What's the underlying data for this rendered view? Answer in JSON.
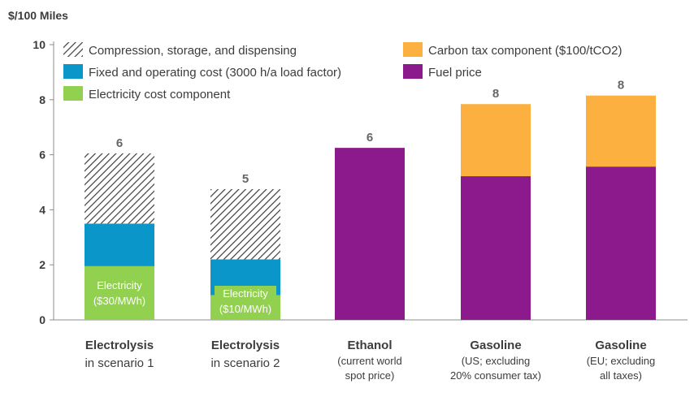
{
  "chart_data": {
    "type": "bar",
    "stacked": true,
    "ylabel": "$/100 Miles",
    "ylim": [
      0,
      10
    ],
    "yticks": [
      0,
      2,
      4,
      6,
      8,
      10
    ],
    "grid": false,
    "legend_position": "top",
    "categories": [
      {
        "title": "Electrolysis",
        "lines": [
          "in scenario 1"
        ]
      },
      {
        "title": "Electrolysis",
        "lines": [
          "in scenario 2"
        ]
      },
      {
        "title": "Ethanol",
        "lines": [
          "(current world",
          "spot price)"
        ]
      },
      {
        "title": "Gasoline",
        "lines": [
          "(US; excluding",
          "20% consumer tax)"
        ]
      },
      {
        "title": "Gasoline",
        "lines": [
          "(EU; excluding",
          "all taxes)"
        ]
      }
    ],
    "series": [
      {
        "key": "electricity",
        "name": "Electricity cost component",
        "color": "#92d050",
        "values": [
          1.95,
          0.9,
          0,
          0,
          0
        ]
      },
      {
        "key": "fixed",
        "name": "Fixed and operating cost (3000 h/a load factor)",
        "color": "#0a96c8",
        "values": [
          1.55,
          1.3,
          0,
          0,
          0
        ]
      },
      {
        "key": "compression",
        "name": "Compression, storage, and dispensing",
        "color": "hatch",
        "values": [
          2.55,
          2.55,
          0,
          0,
          0
        ]
      },
      {
        "key": "fuel",
        "name": "Fuel price",
        "color": "#8c1a8c",
        "values": [
          0,
          0,
          6.25,
          5.22,
          5.57
        ]
      },
      {
        "key": "carbon",
        "name": "Carbon tax component ($100/tCO2)",
        "color": "#fbb040",
        "values": [
          0,
          0,
          0,
          2.62,
          2.58
        ]
      }
    ],
    "totals": [
      "6",
      "5",
      "6",
      "8",
      "8"
    ],
    "bar_labels": [
      {
        "category": 0,
        "lines": [
          "Electricity",
          "($30/MWh)"
        ]
      },
      {
        "category": 1,
        "lines": [
          "Electricity",
          "($10/MWh)"
        ]
      }
    ]
  }
}
